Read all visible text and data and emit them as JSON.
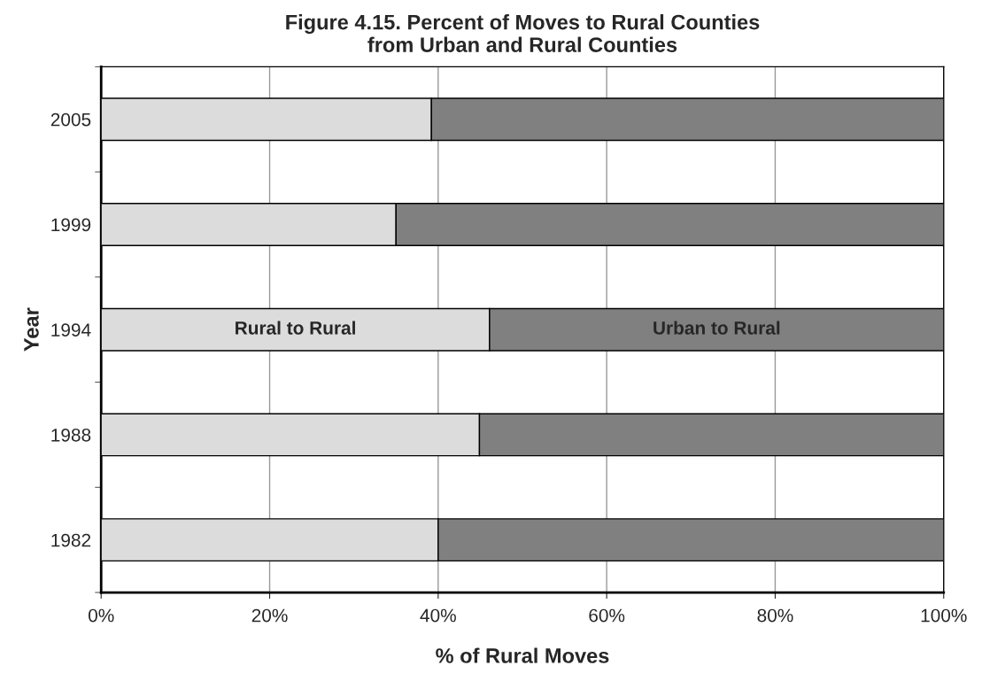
{
  "chart_data": {
    "type": "bar",
    "orientation": "horizontal",
    "stacked": true,
    "title": "Figure 4.15. Percent of Moves to Rural Counties\nfrom Urban and Rural Counties",
    "xlabel": "% of Rural Moves",
    "ylabel": "Year",
    "categories": [
      "2005",
      "1999",
      "1994",
      "1988",
      "1982"
    ],
    "series": [
      {
        "name": "Rural to Rural",
        "color": "#dcdcdc",
        "values": [
          39.2,
          35.0,
          46.1,
          44.9,
          40.0
        ]
      },
      {
        "name": "Urban to Rural",
        "color": "#808080",
        "values": [
          60.8,
          65.0,
          53.9,
          55.1,
          60.0
        ]
      }
    ],
    "xlim": [
      0,
      100
    ],
    "xticks": [
      {
        "value": 0,
        "label": "0%"
      },
      {
        "value": 20,
        "label": "20%"
      },
      {
        "value": 40,
        "label": "40%"
      },
      {
        "value": 60,
        "label": "60%"
      },
      {
        "value": 80,
        "label": "80%"
      },
      {
        "value": 100,
        "label": "100%"
      }
    ],
    "grid": "x",
    "legend": false
  }
}
